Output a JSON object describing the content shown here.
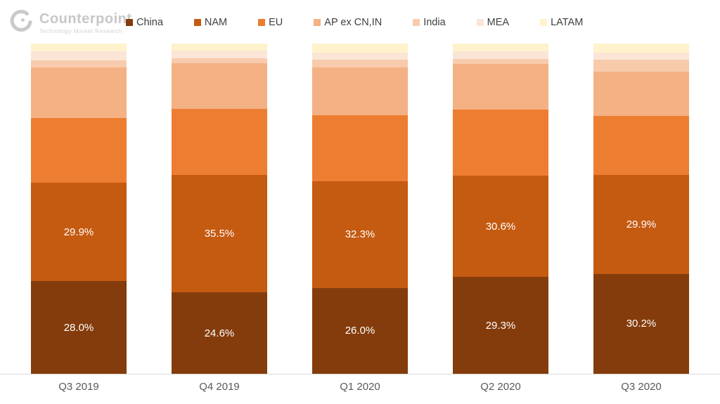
{
  "brand": {
    "name": "Counterpoint",
    "tagline": "Technology Market Research"
  },
  "chart_data": {
    "type": "bar",
    "stacked": true,
    "percent_stacked": true,
    "title": "",
    "xlabel": "",
    "ylabel": "",
    "ylim": [
      0,
      100
    ],
    "grid": false,
    "legend_position": "top",
    "axis_line_color": "#d9d9d9",
    "category_label_color": "#595959",
    "data_label_color": "#ffffff",
    "categories": [
      "Q3 2019",
      "Q4 2019",
      "Q1 2020",
      "Q2 2020",
      "Q3 2020"
    ],
    "series": [
      {
        "name": "China",
        "color": "#843C0C",
        "values": [
          28.0,
          24.6,
          26.0,
          29.3,
          30.2
        ],
        "data_labels": [
          "28.0%",
          "24.6%",
          "26.0%",
          "29.3%",
          "30.2%"
        ]
      },
      {
        "name": "NAM",
        "color": "#C55A11",
        "values": [
          29.9,
          35.5,
          32.3,
          30.6,
          29.9
        ],
        "data_labels": [
          "29.9%",
          "35.5%",
          "32.3%",
          "30.6%",
          "29.9%"
        ]
      },
      {
        "name": "EU",
        "color": "#ED7D31",
        "values": [
          19.5,
          20.2,
          19.9,
          20.1,
          17.9
        ],
        "data_labels": null
      },
      {
        "name": "AP ex CN,IN",
        "color": "#F4B183",
        "values": [
          15.3,
          13.7,
          14.6,
          13.8,
          13.5
        ],
        "data_labels": null
      },
      {
        "name": "India",
        "color": "#F8CBAD",
        "values": [
          2.1,
          1.5,
          2.2,
          1.5,
          3.6
        ],
        "data_labels": null
      },
      {
        "name": "MEA",
        "color": "#FBE5D6",
        "values": [
          2.8,
          2.4,
          2.2,
          2.4,
          2.1
        ],
        "data_labels": null
      },
      {
        "name": "LATAM",
        "color": "#FFF2CC",
        "values": [
          2.4,
          2.1,
          2.8,
          2.3,
          2.8
        ],
        "data_labels": null
      }
    ]
  }
}
